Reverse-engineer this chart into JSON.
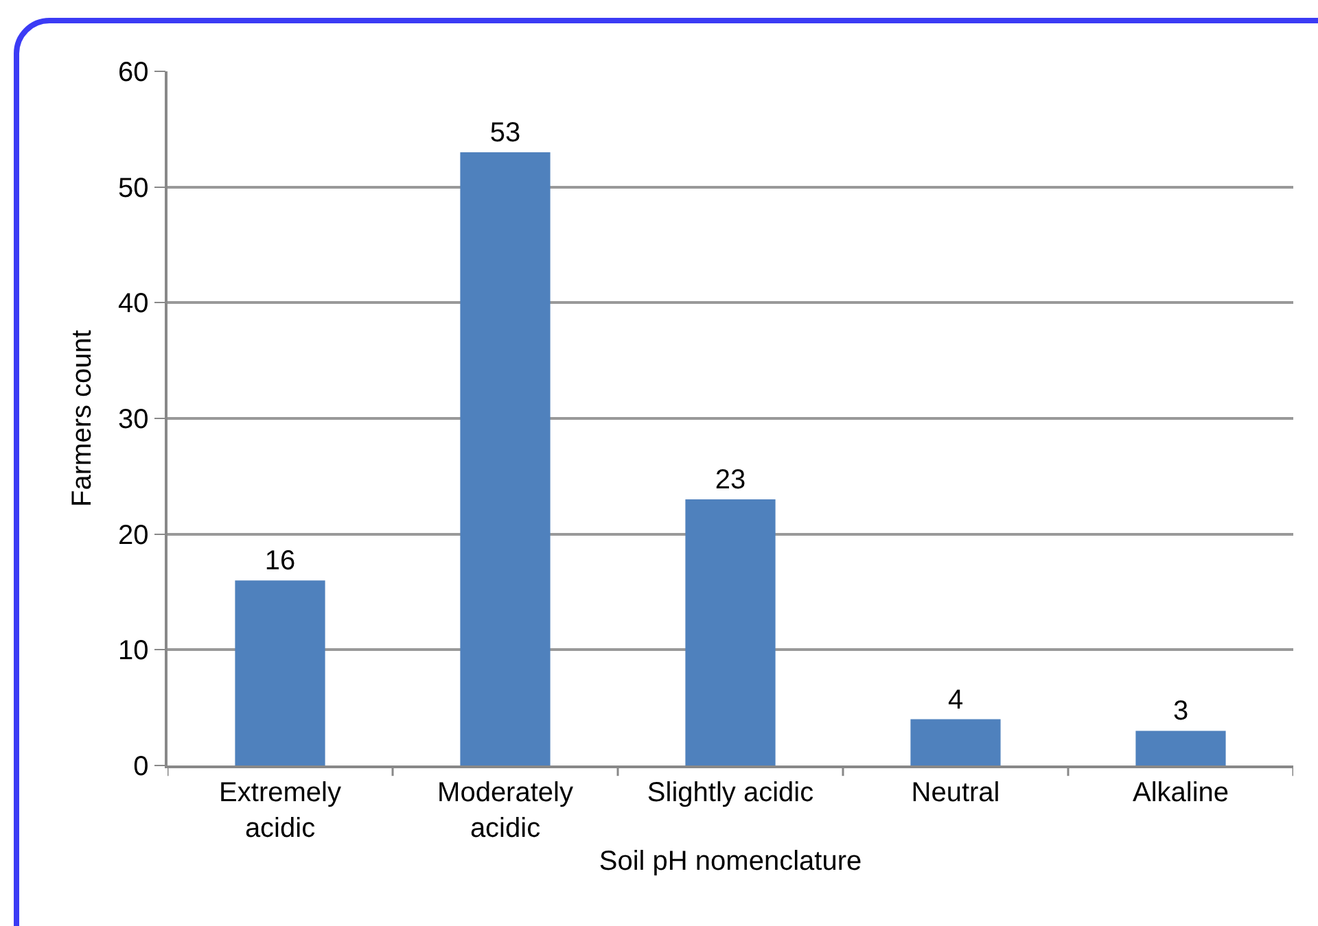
{
  "chart_data": {
    "type": "bar",
    "xlabel": "Soil pH nomenclature",
    "ylabel": "Farmers count",
    "categories": [
      "Extremely acidic",
      "Moderately acidic",
      "Slightly acidic",
      "Neutral",
      "Alkaline"
    ],
    "values": [
      16,
      53,
      23,
      4,
      3
    ],
    "color": "#4f81bd",
    "data_labels": true,
    "ylim": [
      0,
      60
    ],
    "yticks": [
      0,
      10,
      20,
      30,
      40,
      50,
      60
    ],
    "grid": "y"
  }
}
